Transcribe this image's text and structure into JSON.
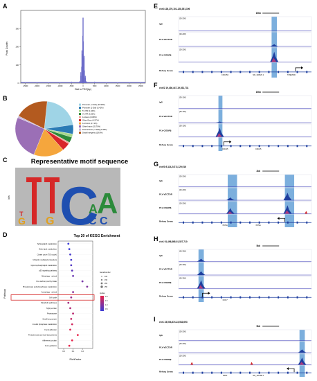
{
  "panels": {
    "A": {
      "letter": "A",
      "ylabel": "Peak Counts",
      "xlabel": "Dist to TSS(bp)"
    },
    "B": {
      "letter": "B",
      "legend": [
        {
          "label": "Promoter (<=1kb) (20.96%)",
          "color": "#9fd4e6"
        },
        {
          "label": "Promoter (1-2kb) (5.41%)",
          "color": "#2b7bb5"
        },
        {
          "label": "5' UTR (1.94%)",
          "color": "#a8d88c"
        },
        {
          "label": "3' UTR (3.25%)",
          "color": "#2e8a3a"
        },
        {
          "label": "1st Exon (0.89%)",
          "color": "#f2a29a"
        },
        {
          "label": "Other Exon (4.57%)",
          "color": "#d9262a"
        },
        {
          "label": "1st Intron (17.1%)",
          "color": "#f5a63d"
        },
        {
          "label": "Other Intron (25.70%)",
          "color": "#9b6fb6"
        },
        {
          "label": "Downstream (<=300) (1.08%)",
          "color": "#c9b8d8"
        },
        {
          "label": "Distal Intergenic (18.8%)",
          "color": "#b35a1f"
        }
      ]
    },
    "C": {
      "letter": "C",
      "title": "Representative motif sequence",
      "ylabel": "bits"
    },
    "D": {
      "letter": "D",
      "title": "Top 20 of KEGG Enrichment",
      "ylabel": "Pathway",
      "xlabel": "RichFactor",
      "legend_size_title": "GeneNumber",
      "legend_color_title": "qvalue",
      "size_levels": [
        "100",
        "150",
        "200",
        "250"
      ],
      "color_levels": [
        "0.5",
        "1.0",
        "1.5",
        "2.0"
      ],
      "pathways": [
        "Sphingolipid metabolism",
        "Ether lipid metabolism",
        "Citrate cycle (TCA cycle)",
        "Ubiquitin mediated proteolysis",
        "Glycerophospholipid metabolism",
        "p53 signaling pathway",
        "Mitophagy - animal",
        "One carbon pool by folate",
        "Phosphonate and phosphinate metabolism",
        "Autophagy - animal",
        "Cell cycle",
        "Metabolic pathways",
        "Tight junction",
        "Proteasome",
        "Small lung cancer",
        "Inositol phosphate metabolism",
        "Focal adhesion",
        "Pentothenate and CoA biosynthesis",
        "Adherens junction",
        "Axon guidance"
      ],
      "highlight_index": 10,
      "ticks": [
        "0.0",
        "0.1",
        "0.2"
      ]
    },
    "E": {
      "letter": "E",
      "locus": "chr3:128,276,101-128,351,196",
      "scale": "10kb",
      "tracks": [
        {
          "name": "IgG",
          "range": "[20-200]"
        },
        {
          "name": "PLV-VECTOR",
          "range": "[20-200]"
        },
        {
          "name": "PLV-C/EBPβ",
          "range": "[20-200]"
        },
        {
          "name": "Refseq Genes",
          "range": ""
        }
      ],
      "genes": [
        "CDC25C",
        "NR_148626.1",
        "TMEM30C"
      ]
    },
    "F": {
      "letter": "F",
      "locus": "chr22 19,436,447-19,531,731",
      "scale": "10kb",
      "tracks": [
        {
          "name": "IgG",
          "range": "[30-100]"
        },
        {
          "name": "PLV-VECTOR",
          "range": "[30-100]"
        },
        {
          "name": "PLV-C/EBPβ",
          "range": "[30-100]"
        },
        {
          "name": "Refseq Genes",
          "range": ""
        }
      ],
      "genes": [
        "CDC45",
        "CDC45"
      ]
    },
    "G": {
      "letter": "G",
      "locus": "chr20:5,114,247-5,129,916",
      "scale": "2kb",
      "tracks": [
        {
          "name": "IgG",
          "range": "[20-200]"
        },
        {
          "name": "PLV-VECTOR",
          "range": "[20-200]"
        },
        {
          "name": "PLV-C/EBPβ",
          "range": "[20-200]"
        },
        {
          "name": "Refseq Genes",
          "range": ""
        }
      ],
      "genes": [
        "PCNA",
        "PCNA"
      ]
    },
    "H": {
      "letter": "H",
      "locus": "chr1 91,496,868-91,527,710",
      "scale": "5kb",
      "tracks": [
        {
          "name": "IgG",
          "range": "[20-300]"
        },
        {
          "name": "PLV-VECTOR",
          "range": "[20-300]"
        },
        {
          "name": "PLV-C/EBPβ",
          "range": "[20-300]"
        },
        {
          "name": "Refseq Genes",
          "range": ""
        }
      ],
      "genes": [
        "CDC7"
      ]
    },
    "I": {
      "letter": "I",
      "locus": "chr1 23,504,874-23,532,693",
      "scale": "5kb",
      "tracks": [
        {
          "name": "IgG",
          "range": "[20-200]"
        },
        {
          "name": "PLV-VECTOR",
          "range": "[20-200]"
        },
        {
          "name": "PLV-C/EBPβ",
          "range": "[20-200]"
        },
        {
          "name": "Refseq Genes",
          "range": ""
        }
      ],
      "genes": [
        "E2F2",
        "NR_116788.1"
      ]
    }
  },
  "chart_data": [
    {
      "type": "bar",
      "panel": "A",
      "ylabel": "Peak Counts",
      "xlabel": "Dist to TSS(bp)",
      "x": [
        -25000,
        -20000,
        -15000,
        -10000,
        -5000,
        -1000,
        -500,
        0,
        500,
        1000,
        5000,
        10000,
        15000,
        20000,
        25000
      ],
      "values": [
        3,
        3,
        4,
        5,
        8,
        60,
        180,
        360,
        150,
        40,
        8,
        5,
        4,
        3,
        3
      ],
      "ylim": [
        0,
        400
      ]
    },
    {
      "type": "pie",
      "panel": "B",
      "labels": [
        "Promoter (<=1kb)",
        "Promoter (1-2kb)",
        "5' UTR",
        "3' UTR",
        "1st Exon",
        "Other Exon",
        "1st Intron",
        "Other Intron",
        "Downstream (<=300)",
        "Distal Intergenic"
      ],
      "values": [
        20.96,
        5.41,
        1.94,
        3.25,
        0.89,
        4.57,
        17.1,
        25.7,
        1.08,
        18.8
      ]
    },
    {
      "type": "scatter",
      "panel": "D",
      "xlabel": "RichFactor",
      "ylabel": "Pathway",
      "points": [
        {
          "y": "Sphingolipid metabolism",
          "x": 0.05,
          "q": 0.5
        },
        {
          "y": "Ether lipid metabolism",
          "x": 0.06,
          "q": 0.5
        },
        {
          "y": "Citrate cycle (TCA cycle)",
          "x": 0.07,
          "q": 0.6
        },
        {
          "y": "Ubiquitin mediated proteolysis",
          "x": 0.08,
          "q": 0.6
        },
        {
          "y": "Glycerophospholipid metabolism",
          "x": 0.08,
          "q": 0.7
        },
        {
          "y": "p53 signaling pathway",
          "x": 0.09,
          "q": 0.8
        },
        {
          "y": "Mitophagy - animal",
          "x": 0.1,
          "q": 0.9
        },
        {
          "y": "One carbon pool by folate",
          "x": 0.2,
          "q": 1.0
        },
        {
          "y": "Phosphonate and phosphinate metabolism",
          "x": 0.25,
          "q": 1.1
        },
        {
          "y": "Autophagy - animal",
          "x": 0.1,
          "q": 1.2
        },
        {
          "y": "Cell cycle",
          "x": 0.08,
          "q": 1.3
        },
        {
          "y": "Metabolic pathways",
          "x": 0.05,
          "q": 1.4
        },
        {
          "y": "Tight junction",
          "x": 0.07,
          "q": 1.5
        },
        {
          "y": "Proteasome",
          "x": 0.1,
          "q": 1.6
        },
        {
          "y": "Small lung cancer",
          "x": 0.08,
          "q": 1.7
        },
        {
          "y": "Inositol phosphate metabolism",
          "x": 0.09,
          "q": 1.8
        },
        {
          "y": "Focal adhesion",
          "x": 0.07,
          "q": 1.9
        },
        {
          "y": "Pentothenate and CoA biosynthesis",
          "x": 0.15,
          "q": 2.0
        },
        {
          "y": "Adherens junction",
          "x": 0.09,
          "q": 2.0
        },
        {
          "y": "Axon guidance",
          "x": 0.06,
          "q": 2.0
        }
      ]
    }
  ]
}
